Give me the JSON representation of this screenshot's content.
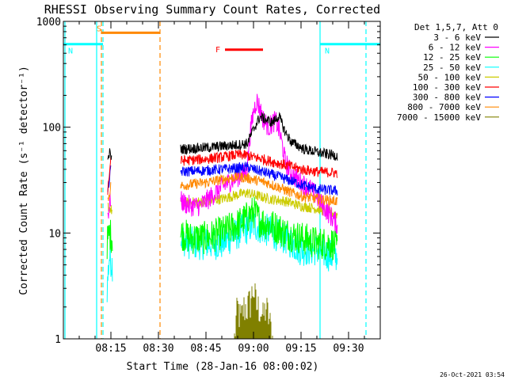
{
  "chart_data": {
    "type": "line",
    "title": "RHESSI Observing Summary Count Rates, Corrected",
    "xlabel": "Start Time (28-Jan-16 08:00:02)",
    "ylabel": "Corrected Count Rate (s⁻¹ detector⁻¹)",
    "y_scale": "log",
    "ylim": [
      1,
      1000
    ],
    "xlim_minutes": [
      0,
      100
    ],
    "x_ticks": [
      {
        "minute": 15,
        "label": "08:15"
      },
      {
        "minute": 30,
        "label": "08:30"
      },
      {
        "minute": 45,
        "label": "08:45"
      },
      {
        "minute": 60,
        "label": "09:00"
      },
      {
        "minute": 75,
        "label": "09:15"
      },
      {
        "minute": 90,
        "label": "09:30"
      }
    ],
    "y_ticks": [
      {
        "value": 1,
        "label": "1"
      },
      {
        "value": 10,
        "label": "10"
      },
      {
        "value": 100,
        "label": "100"
      },
      {
        "value": 1000,
        "label": "1000"
      }
    ],
    "legend_header": "Det 1,5,7, Att 0",
    "legend_position": "right",
    "series": [
      {
        "name": "3 - 6 keV",
        "color": "#000000",
        "points": [
          [
            14.0,
            45
          ],
          [
            14.5,
            58
          ],
          [
            15.3,
            50
          ],
          [
            15.8,
            0
          ],
          [
            37.0,
            62
          ],
          [
            45.0,
            64
          ],
          [
            50.0,
            66
          ],
          [
            55.0,
            68
          ],
          [
            58.0,
            70
          ],
          [
            60.0,
            95
          ],
          [
            62.0,
            125
          ],
          [
            64.0,
            118
          ],
          [
            66.0,
            110
          ],
          [
            68.0,
            128
          ],
          [
            70.0,
            90
          ],
          [
            72.0,
            72
          ],
          [
            76.0,
            62
          ],
          [
            80.0,
            58
          ],
          [
            84.0,
            55
          ],
          [
            86.5,
            54
          ]
        ]
      },
      {
        "name": "6 - 12 keV",
        "color": "#ff00ff",
        "points": [
          [
            14.0,
            15
          ],
          [
            15.0,
            22
          ],
          [
            15.8,
            0
          ],
          [
            37.0,
            20
          ],
          [
            40.0,
            18
          ],
          [
            43.0,
            18
          ],
          [
            45.0,
            20
          ],
          [
            48.0,
            24
          ],
          [
            50.0,
            27
          ],
          [
            52.0,
            30
          ],
          [
            55.0,
            34
          ],
          [
            57.0,
            36
          ],
          [
            58.0,
            42
          ],
          [
            59.0,
            90
          ],
          [
            60.0,
            140
          ],
          [
            61.0,
            180
          ],
          [
            62.0,
            150
          ],
          [
            63.0,
            120
          ],
          [
            64.0,
            108
          ],
          [
            65.0,
            100
          ],
          [
            66.0,
            110
          ],
          [
            67.0,
            115
          ],
          [
            68.0,
            95
          ],
          [
            69.0,
            70
          ],
          [
            70.0,
            48
          ],
          [
            72.0,
            36
          ],
          [
            75.0,
            30
          ],
          [
            78.0,
            26
          ],
          [
            80.0,
            22
          ],
          [
            82.0,
            18
          ],
          [
            84.0,
            15
          ],
          [
            86.5,
            12
          ]
        ]
      },
      {
        "name": "12 - 25 keV",
        "color": "#00ff00",
        "points": [
          [
            13.8,
            8
          ],
          [
            14.5,
            10
          ],
          [
            15.5,
            9
          ],
          [
            15.8,
            0
          ],
          [
            37.0,
            10
          ],
          [
            40.0,
            9
          ],
          [
            45.0,
            9
          ],
          [
            50.0,
            10
          ],
          [
            55.0,
            12
          ],
          [
            58.0,
            14
          ],
          [
            60.0,
            16
          ],
          [
            62.0,
            13
          ],
          [
            65.0,
            12
          ],
          [
            68.0,
            11
          ],
          [
            70.0,
            10
          ],
          [
            75.0,
            9
          ],
          [
            80.0,
            8
          ],
          [
            85.0,
            8
          ],
          [
            86.5,
            7
          ]
        ]
      },
      {
        "name": "25 - 50 keV",
        "color": "#00ffff",
        "points": [
          [
            13.8,
            3
          ],
          [
            14.5,
            6
          ],
          [
            15.5,
            5
          ],
          [
            15.8,
            0
          ],
          [
            37.0,
            9
          ],
          [
            40.0,
            8
          ],
          [
            45.0,
            8
          ],
          [
            50.0,
            8
          ],
          [
            55.0,
            10
          ],
          [
            60.0,
            12
          ],
          [
            63.0,
            11
          ],
          [
            66.0,
            10
          ],
          [
            70.0,
            9
          ],
          [
            75.0,
            7
          ],
          [
            80.0,
            7
          ],
          [
            85.0,
            6
          ],
          [
            86.5,
            6
          ]
        ]
      },
      {
        "name": "50 - 100 keV",
        "color": "#cccc00",
        "points": [
          [
            14.0,
            18
          ],
          [
            15.5,
            16
          ],
          [
            15.8,
            0
          ],
          [
            37.0,
            19
          ],
          [
            45.0,
            20
          ],
          [
            50.0,
            21
          ],
          [
            55.0,
            23
          ],
          [
            58.0,
            24
          ],
          [
            60.0,
            23
          ],
          [
            65.0,
            21
          ],
          [
            70.0,
            20
          ],
          [
            75.0,
            18
          ],
          [
            80.0,
            17
          ],
          [
            86.5,
            15
          ]
        ]
      },
      {
        "name": "100 - 300 keV",
        "color": "#ff0000",
        "points": [
          [
            14.0,
            25
          ],
          [
            15.0,
            52
          ],
          [
            15.8,
            0
          ],
          [
            37.0,
            48
          ],
          [
            45.0,
            50
          ],
          [
            50.0,
            52
          ],
          [
            55.0,
            55
          ],
          [
            58.0,
            54
          ],
          [
            60.0,
            52
          ],
          [
            63.0,
            50
          ],
          [
            66.0,
            47
          ],
          [
            70.0,
            44
          ],
          [
            75.0,
            40
          ],
          [
            80.0,
            38
          ],
          [
            86.5,
            37
          ]
        ]
      },
      {
        "name": "300 - 800 keV",
        "color": "#0000ff",
        "points": [
          [
            14.0,
            25
          ],
          [
            15.0,
            40
          ],
          [
            15.8,
            0
          ],
          [
            37.0,
            38
          ],
          [
            45.0,
            39
          ],
          [
            50.0,
            40
          ],
          [
            55.0,
            41
          ],
          [
            58.0,
            42
          ],
          [
            60.0,
            40
          ],
          [
            64.0,
            37
          ],
          [
            68.0,
            34
          ],
          [
            72.0,
            31
          ],
          [
            76.0,
            28
          ],
          [
            80.0,
            26
          ],
          [
            86.5,
            25
          ]
        ]
      },
      {
        "name": "800 - 7000 keV",
        "color": "#ff8800",
        "points": [
          [
            14.0,
            20
          ],
          [
            15.0,
            28
          ],
          [
            15.8,
            0
          ],
          [
            37.0,
            28
          ],
          [
            45.0,
            30
          ],
          [
            50.0,
            32
          ],
          [
            55.0,
            34
          ],
          [
            58.0,
            33
          ],
          [
            60.0,
            32
          ],
          [
            64.0,
            30
          ],
          [
            68.0,
            27
          ],
          [
            72.0,
            24
          ],
          [
            76.0,
            22
          ],
          [
            80.0,
            21
          ],
          [
            86.5,
            20
          ]
        ]
      },
      {
        "name": "7000 - 15000 keV",
        "color": "#808000",
        "points": [
          [
            54.0,
            1
          ],
          [
            55.0,
            2
          ],
          [
            56.0,
            1.5
          ],
          [
            57.0,
            2
          ],
          [
            58.0,
            2
          ],
          [
            59.0,
            2.3
          ],
          [
            60.0,
            3
          ],
          [
            61.0,
            2
          ],
          [
            62.0,
            2
          ],
          [
            63.0,
            1.6
          ],
          [
            64.0,
            2
          ],
          [
            65.0,
            1.5
          ],
          [
            66.0,
            1
          ]
        ]
      }
    ],
    "annotations": [
      {
        "label": "S",
        "color": "#ff8800",
        "x_start": 12.0,
        "x_end": 30.5,
        "value": 780
      },
      {
        "label": "N",
        "color": "#00ffff",
        "x_start": 0,
        "x_end": 12.5,
        "value": 610
      },
      {
        "label": "N",
        "color": "#00ffff",
        "x_start": 81.0,
        "x_end": 100,
        "value": 610
      },
      {
        "label": "F",
        "color": "#ff0000",
        "x_start": 51.0,
        "x_end": 63.0,
        "value": 540
      }
    ],
    "vertical_lines": [
      {
        "x": 10.5,
        "color": "#00ffff",
        "style": "solid"
      },
      {
        "x": 12.5,
        "color": "#00ffff",
        "style": "dashed"
      },
      {
        "x": 12.0,
        "color": "#ff8800",
        "style": "dashed"
      },
      {
        "x": 30.5,
        "color": "#ff8800",
        "style": "dashed"
      },
      {
        "x": 81.0,
        "color": "#00ffff",
        "style": "solid"
      },
      {
        "x": 95.5,
        "color": "#00ffff",
        "style": "dashed"
      },
      {
        "x": 0.5,
        "color": "#00ffff",
        "style": "solid"
      }
    ],
    "footer_timestamp": "26-Oct-2021 03:54"
  }
}
